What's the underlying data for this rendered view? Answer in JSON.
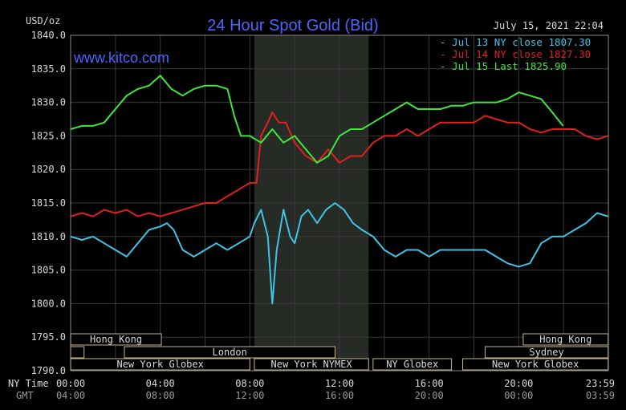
{
  "chart_data": {
    "type": "line",
    "title": "24 Hour Spot Gold (Bid)",
    "brand": "www.kitco.com",
    "unit_label": "USD/oz",
    "date_time": "July 15, 2021 22:04",
    "ylim": [
      1790,
      1840
    ],
    "y_ticks": [
      "1840.0",
      "1835.0",
      "1830.0",
      "1825.0",
      "1820.0",
      "1815.0",
      "1810.0",
      "1805.0",
      "1800.0",
      "1795.0",
      "1790.0"
    ],
    "x_ticks_ny": [
      "00:00",
      "04:00",
      "08:00",
      "12:00",
      "16:00",
      "20:00",
      "23:59"
    ],
    "x_ticks_gmt": [
      "04:00",
      "08:00",
      "12:00",
      "16:00",
      "20:00",
      "00:00",
      "03:59"
    ],
    "x_row_labels": {
      "ny": "NY Time",
      "gmt": "GMT"
    },
    "legend_position": "top-right",
    "grid": true,
    "series": [
      {
        "name": "Jul 13 NY close 1807.30",
        "color": "#3fc4e8",
        "points": [
          [
            0,
            1810
          ],
          [
            0.5,
            1809.5
          ],
          [
            1,
            1810
          ],
          [
            1.5,
            1809
          ],
          [
            2,
            1808
          ],
          [
            2.5,
            1807
          ],
          [
            3,
            1809
          ],
          [
            3.5,
            1811
          ],
          [
            4,
            1811.5
          ],
          [
            4.3,
            1812
          ],
          [
            4.6,
            1811
          ],
          [
            5,
            1808
          ],
          [
            5.5,
            1807
          ],
          [
            6,
            1808
          ],
          [
            6.5,
            1809
          ],
          [
            7,
            1808
          ],
          [
            7.5,
            1809
          ],
          [
            8,
            1810
          ],
          [
            8.2,
            1812
          ],
          [
            8.5,
            1814
          ],
          [
            8.8,
            1810
          ],
          [
            9,
            1800
          ],
          [
            9.2,
            1808
          ],
          [
            9.5,
            1814
          ],
          [
            9.8,
            1810
          ],
          [
            10,
            1809
          ],
          [
            10.3,
            1813
          ],
          [
            10.6,
            1814
          ],
          [
            11,
            1812
          ],
          [
            11.4,
            1814
          ],
          [
            11.8,
            1815
          ],
          [
            12.2,
            1814
          ],
          [
            12.6,
            1812
          ],
          [
            13,
            1811
          ],
          [
            13.5,
            1810
          ],
          [
            14,
            1808
          ],
          [
            14.5,
            1807
          ],
          [
            15,
            1808
          ],
          [
            15.5,
            1808
          ],
          [
            16,
            1807
          ],
          [
            16.5,
            1808
          ],
          [
            17,
            1808
          ],
          [
            17.5,
            1808
          ],
          [
            18,
            1808
          ],
          [
            18.5,
            1808
          ],
          [
            19,
            1807
          ],
          [
            19.5,
            1806
          ],
          [
            20,
            1805.5
          ],
          [
            20.5,
            1806
          ],
          [
            21,
            1809
          ],
          [
            21.5,
            1810
          ],
          [
            22,
            1810
          ],
          [
            22.5,
            1811
          ],
          [
            23,
            1812
          ],
          [
            23.5,
            1813.5
          ],
          [
            23.99,
            1813
          ]
        ]
      },
      {
        "name": "Jul 14 NY close 1827.30",
        "color": "#e0201c",
        "points": [
          [
            0,
            1813
          ],
          [
            0.5,
            1813.5
          ],
          [
            1,
            1813
          ],
          [
            1.5,
            1814
          ],
          [
            2,
            1813.5
          ],
          [
            2.5,
            1814
          ],
          [
            3,
            1813
          ],
          [
            3.5,
            1813.5
          ],
          [
            4,
            1813
          ],
          [
            4.5,
            1813.5
          ],
          [
            5,
            1814
          ],
          [
            5.5,
            1814.5
          ],
          [
            6,
            1815
          ],
          [
            6.5,
            1815
          ],
          [
            7,
            1816
          ],
          [
            7.5,
            1817
          ],
          [
            8,
            1818
          ],
          [
            8.3,
            1818
          ],
          [
            8.5,
            1825
          ],
          [
            8.8,
            1827
          ],
          [
            9,
            1828.5
          ],
          [
            9.3,
            1827
          ],
          [
            9.6,
            1827
          ],
          [
            10,
            1824
          ],
          [
            10.5,
            1822
          ],
          [
            11,
            1821
          ],
          [
            11.5,
            1823
          ],
          [
            12,
            1821
          ],
          [
            12.5,
            1822
          ],
          [
            13,
            1822
          ],
          [
            13.5,
            1824
          ],
          [
            14,
            1825
          ],
          [
            14.5,
            1825
          ],
          [
            15,
            1826
          ],
          [
            15.5,
            1825
          ],
          [
            16,
            1826
          ],
          [
            16.5,
            1827
          ],
          [
            17,
            1827
          ],
          [
            17.5,
            1827
          ],
          [
            18,
            1827
          ],
          [
            18.5,
            1828
          ],
          [
            19,
            1827.5
          ],
          [
            19.5,
            1827
          ],
          [
            20,
            1827
          ],
          [
            20.5,
            1826
          ],
          [
            21,
            1825.5
          ],
          [
            21.5,
            1826
          ],
          [
            22,
            1826
          ],
          [
            22.5,
            1826
          ],
          [
            23,
            1825
          ],
          [
            23.5,
            1824.5
          ],
          [
            23.99,
            1825
          ]
        ]
      },
      {
        "name": "Jul 15 Last 1825.90",
        "color": "#3ee83a",
        "points": [
          [
            0,
            1826
          ],
          [
            0.5,
            1826.5
          ],
          [
            1,
            1826.5
          ],
          [
            1.5,
            1827
          ],
          [
            2,
            1829
          ],
          [
            2.5,
            1831
          ],
          [
            3,
            1832
          ],
          [
            3.5,
            1832.5
          ],
          [
            4,
            1834
          ],
          [
            4.5,
            1832
          ],
          [
            5,
            1831
          ],
          [
            5.5,
            1832
          ],
          [
            6,
            1832.5
          ],
          [
            6.5,
            1832.5
          ],
          [
            7,
            1832
          ],
          [
            7.3,
            1828
          ],
          [
            7.6,
            1825
          ],
          [
            8,
            1825
          ],
          [
            8.5,
            1824
          ],
          [
            9,
            1826
          ],
          [
            9.5,
            1824
          ],
          [
            10,
            1825
          ],
          [
            10.5,
            1823
          ],
          [
            11,
            1821
          ],
          [
            11.5,
            1822
          ],
          [
            12,
            1825
          ],
          [
            12.5,
            1826
          ],
          [
            13,
            1826
          ],
          [
            13.5,
            1827
          ],
          [
            14,
            1828
          ],
          [
            14.5,
            1829
          ],
          [
            15,
            1830
          ],
          [
            15.5,
            1829
          ],
          [
            16,
            1829
          ],
          [
            16.5,
            1829
          ],
          [
            17,
            1829.5
          ],
          [
            17.5,
            1829.5
          ],
          [
            18,
            1830
          ],
          [
            18.5,
            1830
          ],
          [
            19,
            1830
          ],
          [
            19.5,
            1830.5
          ],
          [
            20,
            1831.5
          ],
          [
            20.5,
            1831
          ],
          [
            21,
            1830.5
          ],
          [
            21.5,
            1828.5
          ],
          [
            21.98,
            1826.5
          ]
        ]
      }
    ],
    "sessions": [
      {
        "label": "Hong Kong",
        "row": 0,
        "start": 0,
        "end": 4.05
      },
      {
        "label": "",
        "row": 1,
        "start": 0,
        "end": 0.6
      },
      {
        "label": "London",
        "row": 1,
        "start": 2.4,
        "end": 11.8
      },
      {
        "label": "New York Globex",
        "row": 2,
        "start": 0,
        "end": 8.0
      },
      {
        "label": "New York NYMEX",
        "row": 2,
        "start": 8.2,
        "end": 13.3
      },
      {
        "label": "NY Globex",
        "row": 2,
        "start": 13.5,
        "end": 17.0
      },
      {
        "label": "Hong Kong",
        "row": 0,
        "start": 20.2,
        "end": 23.99
      },
      {
        "label": "Sydney",
        "row": 1,
        "start": 18.5,
        "end": 23.99
      },
      {
        "label": "New York Globex",
        "row": 2,
        "start": 17.5,
        "end": 23.99
      }
    ],
    "shaded_band": {
      "start": 8.2,
      "end": 13.3
    }
  }
}
